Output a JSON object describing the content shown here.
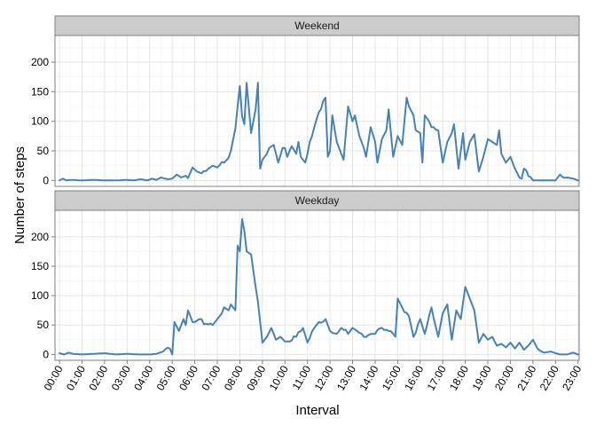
{
  "chart_data": {
    "type": "line",
    "xlabel": "Interval",
    "ylabel": "Number of steps",
    "x_tick_labels": [
      "00:00",
      "01:00",
      "02:00",
      "03:00",
      "04:00",
      "05:00",
      "06:00",
      "07:00",
      "08:00",
      "09:00",
      "10:00",
      "11:00",
      "12:00",
      "13:00",
      "14:00",
      "15:00",
      "16:00",
      "17:00",
      "18:00",
      "19:00",
      "20:00",
      "21:00",
      "22:00",
      "23:00"
    ],
    "y_ticks": [
      0,
      50,
      100,
      150,
      200
    ],
    "ylim": [
      -10,
      245
    ],
    "xlim_hours": [
      -0.2,
      23.05
    ],
    "grid": true,
    "line_color": "#4682b4",
    "panel_border_color": "#7f7f7f",
    "strip_fill": "#cccccc",
    "panels": [
      {
        "strip_label": "Weekend",
        "x_hours": [
          0,
          0.15,
          0.3,
          0.5,
          1,
          1.5,
          2,
          2.5,
          3,
          3.3,
          3.6,
          3.9,
          4.1,
          4.3,
          4.5,
          4.8,
          5.0,
          5.2,
          5.4,
          5.6,
          5.7,
          5.9,
          6.1,
          6.3,
          6.6,
          6.8,
          7.0,
          7.3,
          7.5,
          7.6,
          7.8,
          7.9,
          8.0,
          8.1,
          8.2,
          8.3,
          8.5,
          8.7,
          8.8,
          8.9,
          9.0,
          9.1,
          9.2,
          9.3,
          9.5,
          9.7,
          9.9,
          10.0,
          10.1,
          10.3,
          10.5,
          10.6,
          10.7,
          10.9,
          11.0,
          11.1,
          11.2,
          11.5,
          11.8,
          11.9,
          12.0,
          12.1,
          12.3,
          12.5,
          12.6,
          12.8,
          13.0,
          13.1,
          13.3,
          13.5,
          13.6,
          13.8,
          14.0,
          14.1,
          14.3,
          14.5,
          14.6,
          14.8,
          15.0,
          15.2,
          15.4,
          15.5,
          15.7,
          15.8,
          16.0,
          16.1,
          16.2,
          16.5,
          16.8,
          17.0,
          17.2,
          17.4,
          17.5,
          17.7,
          17.9,
          18.0,
          18.2,
          18.4,
          18.6,
          18.8,
          19.0,
          19.2,
          19.4,
          19.5,
          19.6,
          19.8,
          20.0,
          20.2,
          20.4,
          20.5,
          20.6,
          21.0,
          21.5,
          22.0,
          22.2,
          22.5,
          22.8,
          23.0
        ],
        "y": [
          0,
          3,
          0,
          1,
          0,
          1,
          0,
          0,
          1,
          0,
          2,
          0,
          3,
          1,
          5,
          2,
          3,
          10,
          5,
          8,
          4,
          22,
          15,
          12,
          20,
          25,
          22,
          30,
          38,
          50,
          88,
          125,
          160,
          108,
          95,
          165,
          80,
          120,
          165,
          20,
          35,
          40,
          45,
          55,
          60,
          30,
          55,
          55,
          40,
          58,
          45,
          65,
          40,
          30,
          45,
          65,
          75,
          115,
          140,
          40,
          50,
          110,
          65,
          45,
          35,
          125,
          100,
          110,
          75,
          55,
          40,
          90,
          65,
          30,
          70,
          85,
          120,
          40,
          75,
          60,
          140,
          125,
          110,
          85,
          80,
          30,
          110,
          90,
          85,
          30,
          65,
          80,
          95,
          20,
          80,
          35,
          65,
          78,
          15,
          40,
          70,
          65,
          60,
          85,
          45,
          30,
          40,
          20,
          5,
          3,
          20,
          0,
          0,
          0,
          10,
          5,
          3,
          0
        ],
        "y_noise": 4
      },
      {
        "strip_label": "Weekday",
        "x_hours": [
          0,
          0.2,
          0.4,
          0.6,
          1,
          1.5,
          2,
          2.5,
          3,
          3.5,
          4,
          4.3,
          4.6,
          4.9,
          5.0,
          5.1,
          5.3,
          5.5,
          5.6,
          5.7,
          5.9,
          6.0,
          6.2,
          6.5,
          6.8,
          7.0,
          7.2,
          7.3,
          7.5,
          7.6,
          7.8,
          7.9,
          8.0,
          8.1,
          8.2,
          8.3,
          8.5,
          8.8,
          9.0,
          9.2,
          9.4,
          9.6,
          9.8,
          10.0,
          10.2,
          10.5,
          10.8,
          11.0,
          11.3,
          11.5,
          11.8,
          12.0,
          12.3,
          12.5,
          12.8,
          13.0,
          13.2,
          13.5,
          13.8,
          14.0,
          14.3,
          14.6,
          14.9,
          15.0,
          15.2,
          15.5,
          15.7,
          16.0,
          16.2,
          16.5,
          16.8,
          17.0,
          17.2,
          17.4,
          17.6,
          17.8,
          18.0,
          18.2,
          18.4,
          18.6,
          18.8,
          19.0,
          19.2,
          19.4,
          19.6,
          19.8,
          20.0,
          20.2,
          20.4,
          20.6,
          20.8,
          21.0,
          21.2,
          21.5,
          21.8,
          22.0,
          22.2,
          22.5,
          22.8,
          23.0
        ],
        "y": [
          2,
          0,
          3,
          1,
          0,
          1,
          2,
          0,
          1,
          0,
          0,
          1,
          5,
          10,
          0,
          55,
          40,
          60,
          50,
          75,
          55,
          55,
          60,
          52,
          50,
          60,
          70,
          80,
          75,
          85,
          75,
          185,
          175,
          230,
          210,
          175,
          170,
          90,
          20,
          30,
          45,
          25,
          30,
          22,
          22,
          30,
          45,
          20,
          45,
          55,
          60,
          40,
          35,
          45,
          35,
          45,
          40,
          30,
          35,
          35,
          45,
          40,
          30,
          95,
          80,
          65,
          30,
          60,
          35,
          80,
          30,
          70,
          85,
          25,
          75,
          60,
          115,
          95,
          75,
          20,
          35,
          25,
          30,
          15,
          18,
          12,
          20,
          10,
          20,
          8,
          15,
          25,
          10,
          3,
          5,
          2,
          0,
          0,
          3,
          0
        ],
        "y_noise": 4
      }
    ]
  }
}
